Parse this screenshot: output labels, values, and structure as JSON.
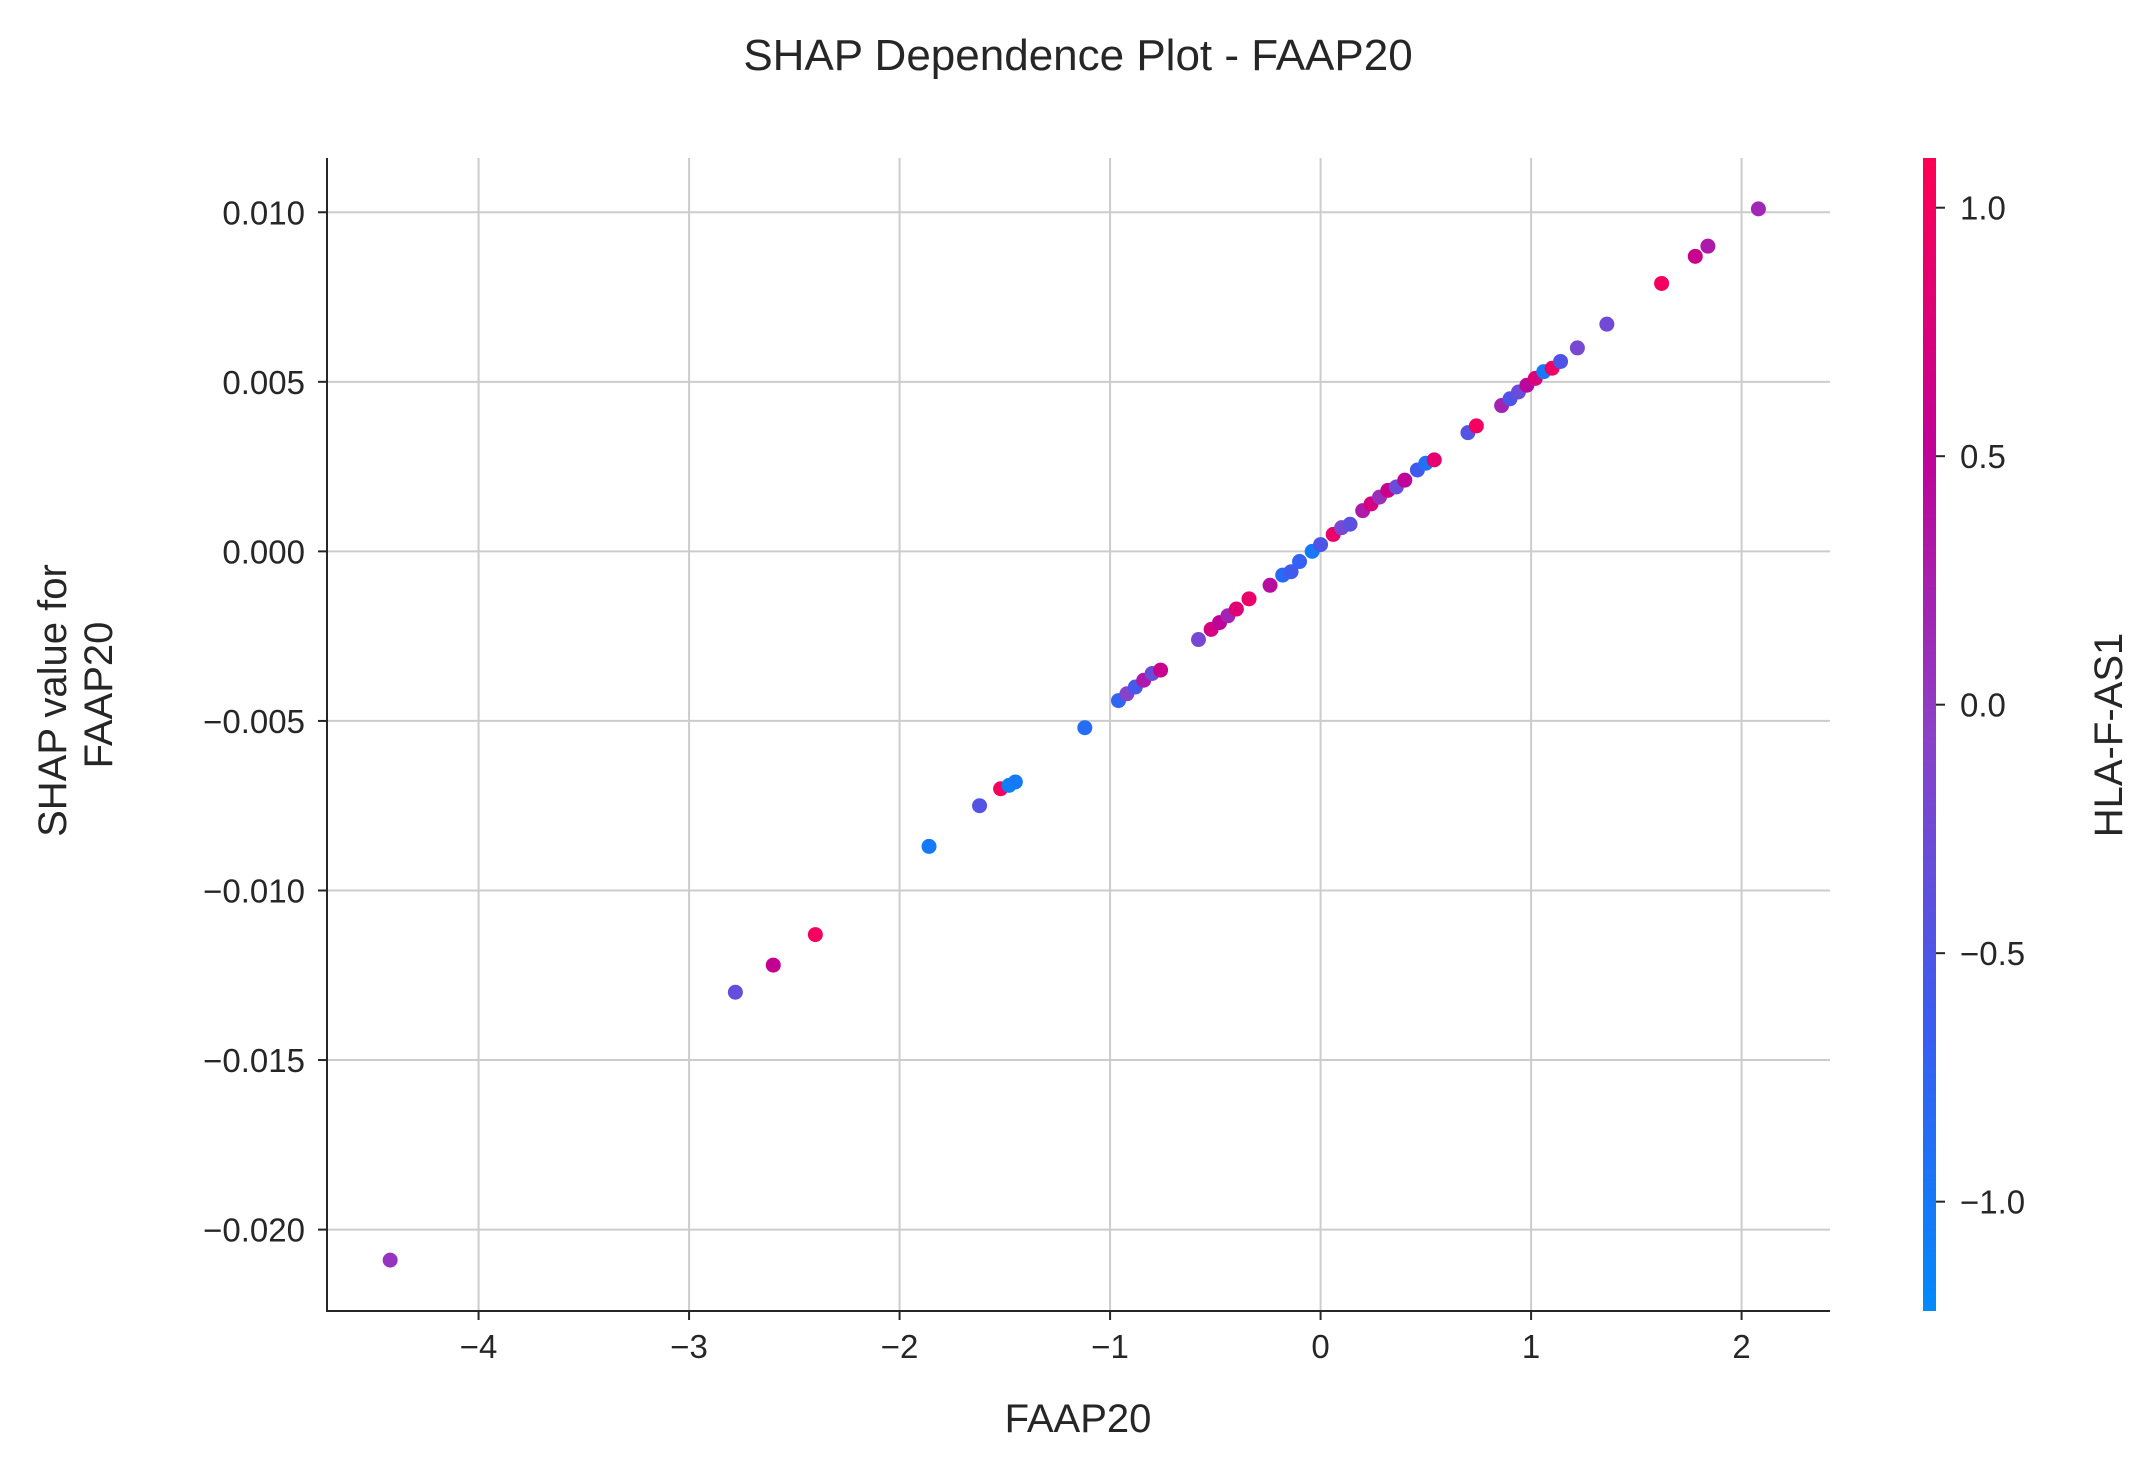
{
  "chart_data": {
    "type": "scatter",
    "title": "SHAP Dependence Plot - FAAP20",
    "xlabel": "FAAP20",
    "ylabel_lines": [
      "SHAP value for",
      "FAAP20"
    ],
    "xlim": [
      -4.72,
      2.42
    ],
    "ylim": [
      -0.0224,
      0.0116
    ],
    "x_ticks": [
      {
        "value": -4,
        "label": "−4"
      },
      {
        "value": -3,
        "label": "−3"
      },
      {
        "value": -2,
        "label": "−2"
      },
      {
        "value": -1,
        "label": "−1"
      },
      {
        "value": 0,
        "label": "0"
      },
      {
        "value": 1,
        "label": "1"
      },
      {
        "value": 2,
        "label": "2"
      }
    ],
    "y_ticks": [
      {
        "value": 0.01,
        "label": "0.010"
      },
      {
        "value": 0.005,
        "label": "0.005"
      },
      {
        "value": 0.0,
        "label": "0.000"
      },
      {
        "value": -0.005,
        "label": "−0.005"
      },
      {
        "value": -0.01,
        "label": "−0.010"
      },
      {
        "value": -0.015,
        "label": "−0.015"
      },
      {
        "value": -0.02,
        "label": "−0.020"
      }
    ],
    "grid": true,
    "colorbar": {
      "label": "HLA-F-AS1",
      "range": [
        -1.22,
        1.1
      ],
      "colors": [
        "#008afb",
        "#3a5cf0",
        "#8b41c8",
        "#c10096",
        "#ff0052"
      ],
      "ticks": [
        {
          "value": 1.0,
          "label": "1.0"
        },
        {
          "value": 0.5,
          "label": "0.5"
        },
        {
          "value": 0.0,
          "label": "0.0"
        },
        {
          "value": -0.5,
          "label": "−0.5"
        },
        {
          "value": -1.0,
          "label": "−1.0"
        }
      ]
    },
    "points": [
      {
        "x": -4.42,
        "y": -0.0209,
        "c": 0.05
      },
      {
        "x": -2.78,
        "y": -0.013,
        "c": -0.35
      },
      {
        "x": -2.6,
        "y": -0.0122,
        "c": 0.55
      },
      {
        "x": -2.4,
        "y": -0.0113,
        "c": 1.0
      },
      {
        "x": -1.86,
        "y": -0.0087,
        "c": -1.0
      },
      {
        "x": -1.62,
        "y": -0.0075,
        "c": -0.45
      },
      {
        "x": -1.52,
        "y": -0.007,
        "c": 1.0
      },
      {
        "x": -1.48,
        "y": -0.0069,
        "c": -1.1
      },
      {
        "x": -1.45,
        "y": -0.0068,
        "c": -1.0
      },
      {
        "x": -1.12,
        "y": -0.0052,
        "c": -0.85
      },
      {
        "x": -0.96,
        "y": -0.0044,
        "c": -0.75
      },
      {
        "x": -0.92,
        "y": -0.0042,
        "c": -0.1
      },
      {
        "x": -0.88,
        "y": -0.004,
        "c": -0.55
      },
      {
        "x": -0.84,
        "y": -0.0038,
        "c": 0.3
      },
      {
        "x": -0.8,
        "y": -0.0036,
        "c": -0.3
      },
      {
        "x": -0.76,
        "y": -0.0035,
        "c": 0.6
      },
      {
        "x": -0.58,
        "y": -0.0026,
        "c": -0.2
      },
      {
        "x": -0.52,
        "y": -0.0023,
        "c": 0.7
      },
      {
        "x": -0.48,
        "y": -0.0021,
        "c": 0.5
      },
      {
        "x": -0.44,
        "y": -0.0019,
        "c": 0.2
      },
      {
        "x": -0.4,
        "y": -0.0017,
        "c": 0.8
      },
      {
        "x": -0.34,
        "y": -0.0014,
        "c": 0.9
      },
      {
        "x": -0.24,
        "y": -0.001,
        "c": 0.4
      },
      {
        "x": -0.18,
        "y": -0.0007,
        "c": -0.8
      },
      {
        "x": -0.14,
        "y": -0.0006,
        "c": -0.6
      },
      {
        "x": -0.1,
        "y": -0.0003,
        "c": -0.7
      },
      {
        "x": -0.04,
        "y": 0.0,
        "c": -1.0
      },
      {
        "x": 0.0,
        "y": 0.0002,
        "c": -0.5
      },
      {
        "x": 0.06,
        "y": 0.0005,
        "c": 0.9
      },
      {
        "x": 0.1,
        "y": 0.0007,
        "c": -0.2
      },
      {
        "x": 0.14,
        "y": 0.0008,
        "c": -0.4
      },
      {
        "x": 0.2,
        "y": 0.0012,
        "c": 0.3
      },
      {
        "x": 0.24,
        "y": 0.0014,
        "c": 0.7
      },
      {
        "x": 0.28,
        "y": 0.0016,
        "c": 0.1
      },
      {
        "x": 0.32,
        "y": 0.0018,
        "c": 0.6
      },
      {
        "x": 0.36,
        "y": 0.0019,
        "c": -0.3
      },
      {
        "x": 0.4,
        "y": 0.0021,
        "c": 0.5
      },
      {
        "x": 0.46,
        "y": 0.0024,
        "c": -0.6
      },
      {
        "x": 0.5,
        "y": 0.0026,
        "c": -0.9
      },
      {
        "x": 0.54,
        "y": 0.0027,
        "c": 0.85
      },
      {
        "x": 0.7,
        "y": 0.0035,
        "c": -0.45
      },
      {
        "x": 0.74,
        "y": 0.0037,
        "c": 1.0
      },
      {
        "x": 0.86,
        "y": 0.0043,
        "c": 0.2
      },
      {
        "x": 0.9,
        "y": 0.0045,
        "c": -0.5
      },
      {
        "x": 0.94,
        "y": 0.0047,
        "c": -0.3
      },
      {
        "x": 0.98,
        "y": 0.0049,
        "c": 0.45
      },
      {
        "x": 1.02,
        "y": 0.0051,
        "c": 0.75
      },
      {
        "x": 1.06,
        "y": 0.0053,
        "c": -1.0
      },
      {
        "x": 1.1,
        "y": 0.0054,
        "c": 0.95
      },
      {
        "x": 1.14,
        "y": 0.0056,
        "c": -0.5
      },
      {
        "x": 1.22,
        "y": 0.006,
        "c": -0.2
      },
      {
        "x": 1.36,
        "y": 0.0067,
        "c": -0.25
      },
      {
        "x": 1.62,
        "y": 0.0079,
        "c": 1.0
      },
      {
        "x": 1.78,
        "y": 0.0087,
        "c": 0.6
      },
      {
        "x": 1.84,
        "y": 0.009,
        "c": 0.3
      },
      {
        "x": 2.08,
        "y": 0.0101,
        "c": 0.15
      }
    ]
  }
}
